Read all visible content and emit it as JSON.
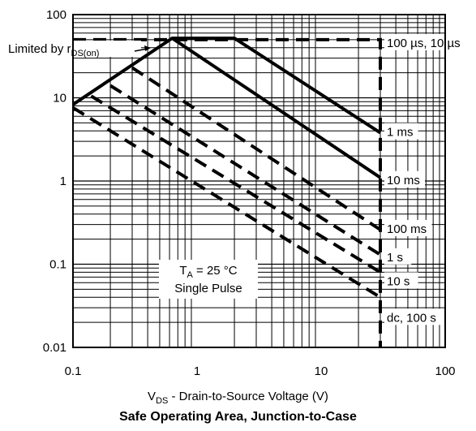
{
  "chart_data": {
    "type": "line",
    "title": "Safe Operating Area, Junction-to-Case",
    "xlabel": {
      "symbol": "V",
      "subscript": "DS",
      "text": "-   Drain-to-Source Voltage (V)"
    },
    "ylabel": "",
    "x_scale": "log",
    "y_scale": "log",
    "xlim": [
      0.1,
      100
    ],
    "ylim": [
      0.01,
      100
    ],
    "x_ticks": [
      "0.1",
      "1",
      "10",
      "100"
    ],
    "y_ticks": [
      "0.01",
      "0.1",
      "1",
      "10",
      "100"
    ],
    "grid": true,
    "annotation": {
      "limited_by": {
        "text": "Limited by r",
        "subscript": "DS(on)"
      },
      "conditions": {
        "line1_symbol": "T",
        "line1_subscript": "A",
        "line1_rest": " = 25 °C",
        "line2": "Single Pulse"
      }
    },
    "series": [
      {
        "name": "100 µs, 10 µs",
        "style": "dashed",
        "points": [
          [
            0.1,
            50
          ],
          [
            30,
            50
          ],
          [
            30,
            0.01
          ]
        ]
      },
      {
        "name": "1 ms",
        "style": "solid",
        "points": [
          [
            0.1,
            8.3
          ],
          [
            0.63,
            52
          ],
          [
            2.0,
            52
          ],
          [
            30,
            3.8
          ]
        ]
      },
      {
        "name": "10 ms",
        "style": "solid",
        "points": [
          [
            0.63,
            52
          ],
          [
            30,
            1.1
          ]
        ]
      },
      {
        "name": "100 ms",
        "style": "dashed",
        "points": [
          [
            0.3,
            23
          ],
          [
            30,
            0.26
          ]
        ]
      },
      {
        "name": "1 s",
        "style": "dashed",
        "points": [
          [
            0.2,
            14
          ],
          [
            30,
            0.13
          ]
        ]
      },
      {
        "name": "10 s",
        "style": "dashed",
        "points": [
          [
            0.14,
            10.5
          ],
          [
            30,
            0.08
          ]
        ]
      },
      {
        "name": "dc, 100 s",
        "style": "dashed",
        "points": [
          [
            0.1,
            7.6
          ],
          [
            30,
            0.04
          ]
        ]
      }
    ]
  }
}
